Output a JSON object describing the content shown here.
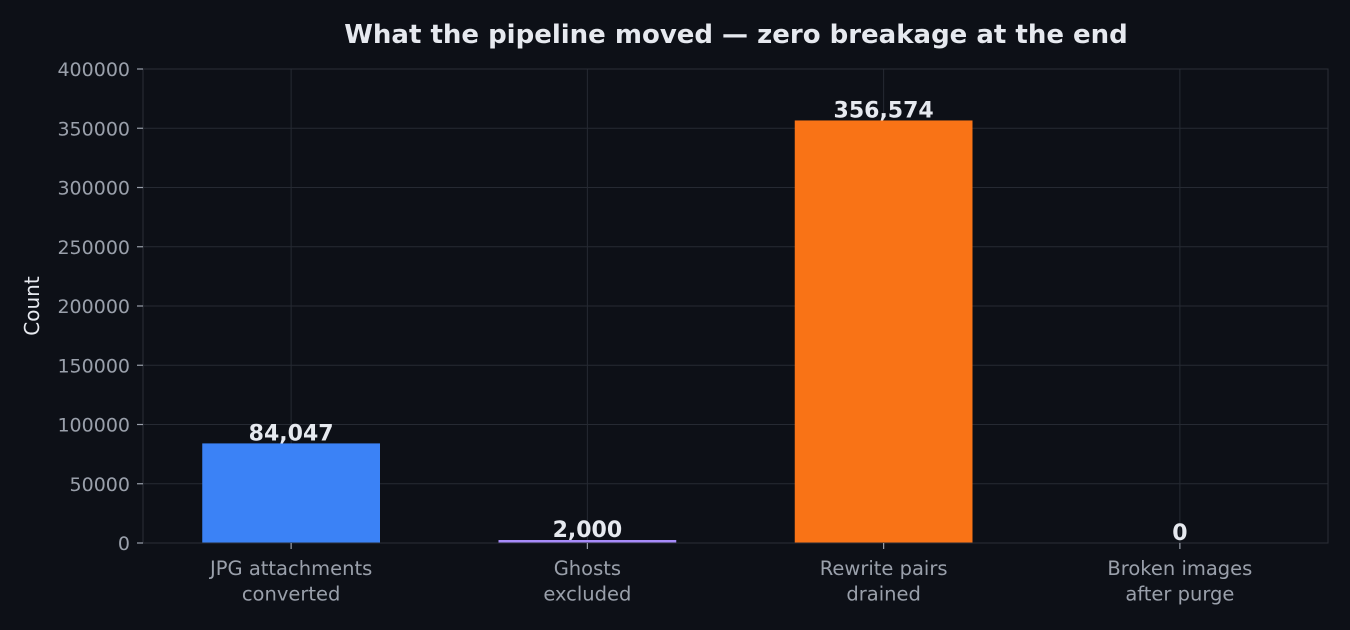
{
  "chart_data": {
    "type": "bar",
    "title": "What the pipeline moved — zero breakage at the end",
    "xlabel": "",
    "ylabel": "Count",
    "ylim": [
      0,
      400000
    ],
    "yticks": [
      0,
      50000,
      100000,
      150000,
      200000,
      250000,
      300000,
      350000,
      400000
    ],
    "grid": true,
    "categories": [
      [
        "JPG attachments",
        "converted"
      ],
      [
        "Ghosts",
        "excluded"
      ],
      [
        "Rewrite pairs",
        "drained"
      ],
      [
        "Broken images",
        "after purge"
      ]
    ],
    "values": [
      84047,
      2000,
      356574,
      0
    ],
    "value_labels": [
      "84,047",
      "2,000",
      "356,574",
      "0"
    ],
    "colors": [
      "#3b82f6",
      "#a78bfa",
      "#f97316",
      "#22c55e"
    ],
    "colors_meta": {
      "background": "#0d1017",
      "text": "#e6e9ef",
      "muted_text": "#9aa0ab",
      "grid": "#262a33"
    }
  }
}
